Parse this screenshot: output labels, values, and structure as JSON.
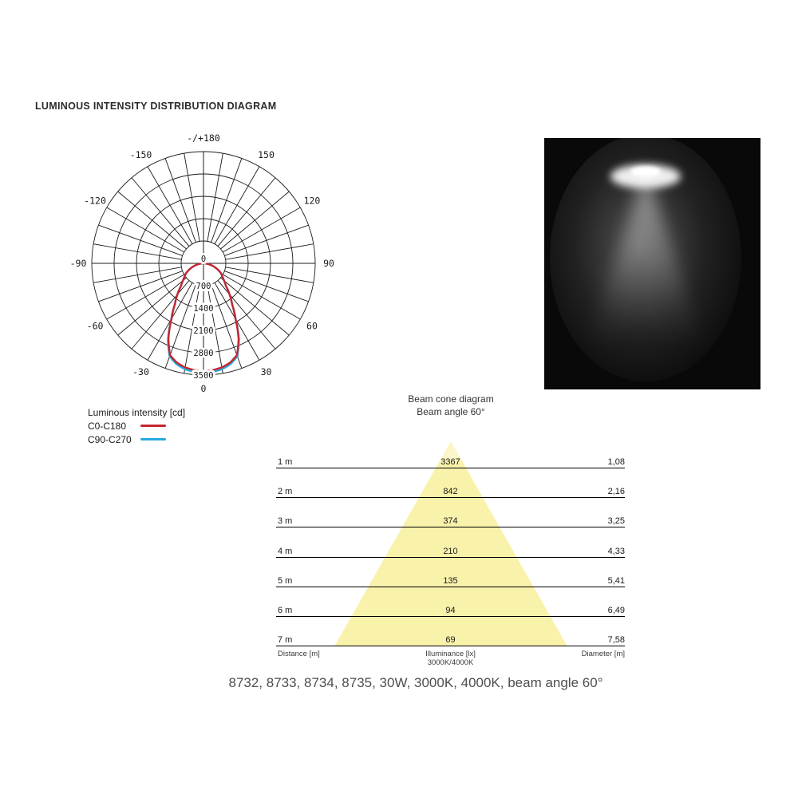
{
  "page": {
    "title": "LUMINOUS INTENSITY DISTRIBUTION DIAGRAM",
    "caption": "8732, 8733, 8734, 8735, 30W, 3000K, 4000K, beam angle 60°"
  },
  "polar": {
    "ring_max": 3500,
    "ring_labels": [
      {
        "value": 0,
        "text": "0"
      },
      {
        "value": 700,
        "text": "700"
      },
      {
        "value": 1400,
        "text": "1400"
      },
      {
        "value": 2100,
        "text": "2100"
      },
      {
        "value": 2800,
        "text": "2800"
      },
      {
        "value": 3500,
        "text": "3500"
      }
    ],
    "angle_labels": [
      {
        "deg": 0,
        "text": "0"
      },
      {
        "deg": 30,
        "text": "30"
      },
      {
        "deg": -30,
        "text": "-30"
      },
      {
        "deg": 60,
        "text": "60"
      },
      {
        "deg": -60,
        "text": "-60"
      },
      {
        "deg": 90,
        "text": "90"
      },
      {
        "deg": -90,
        "text": "-90"
      },
      {
        "deg": 120,
        "text": "120"
      },
      {
        "deg": -120,
        "text": "-120"
      },
      {
        "deg": 150,
        "text": "150"
      },
      {
        "deg": -150,
        "text": "-150"
      },
      {
        "deg": 180,
        "text": "-/+180"
      }
    ],
    "grid_color": "#1c1c1c"
  },
  "legend": {
    "title": "Luminous intensity [cd]",
    "series": [
      {
        "label": "C0-C180",
        "color": "#c6262e"
      },
      {
        "label": "C90-C270",
        "color": "#29a9e0"
      }
    ]
  },
  "photo": {
    "name": "beam-photo"
  },
  "beam_cone": {
    "title": "Beam cone diagram",
    "subtitle": "Beam angle 60°",
    "cone_color": "#f9f2ab",
    "rows": [
      {
        "distance": "1 m",
        "illuminance": "3367",
        "diameter": "1,08"
      },
      {
        "distance": "2 m",
        "illuminance": "842",
        "diameter": "2,16"
      },
      {
        "distance": "3 m",
        "illuminance": "374",
        "diameter": "3,25"
      },
      {
        "distance": "4 m",
        "illuminance": "210",
        "diameter": "4,33"
      },
      {
        "distance": "5 m",
        "illuminance": "135",
        "diameter": "5,41"
      },
      {
        "distance": "6 m",
        "illuminance": "94",
        "diameter": "6,49"
      },
      {
        "distance": "7 m",
        "illuminance": "69",
        "diameter": "7,58"
      }
    ],
    "footer": {
      "left": "Distance [m]",
      "center_line1": "Illuminance [lx]",
      "center_line2": "3000K/4000K",
      "right": "Diameter [m]"
    }
  },
  "chart_data": [
    {
      "type": "line",
      "subtype": "polar",
      "title": "Luminous intensity distribution [cd]",
      "angle_unit": "deg",
      "angle_ticks": [
        -180,
        -150,
        -120,
        -90,
        -60,
        -30,
        0,
        30,
        60,
        90,
        120,
        150,
        180
      ],
      "radial_ticks": [
        0,
        700,
        1400,
        2100,
        2800,
        3500
      ],
      "radial_max": 3500,
      "grid": true,
      "legend_position": "bottom-left",
      "series": [
        {
          "name": "C0-C180",
          "color": "#c6262e",
          "angles": [
            0,
            5,
            10,
            15,
            20,
            25,
            30,
            35,
            40,
            45,
            50,
            55,
            60,
            65,
            70,
            75,
            80,
            85,
            90
          ],
          "values": [
            3367,
            3355,
            3310,
            3220,
            3060,
            2600,
            2000,
            1560,
            1270,
            990,
            840,
            720,
            640,
            520,
            400,
            290,
            180,
            80,
            0
          ]
        },
        {
          "name": "C90-C270",
          "color": "#29a9e0",
          "angles": [
            0,
            5,
            10,
            15,
            20,
            25,
            30,
            35,
            40,
            45,
            50,
            55,
            60,
            65,
            70,
            75,
            80,
            85,
            90
          ],
          "values": [
            3430,
            3415,
            3365,
            3270,
            3100,
            2630,
            2020,
            1570,
            1275,
            992,
            842,
            720,
            638,
            518,
            398,
            288,
            178,
            78,
            0
          ]
        }
      ]
    },
    {
      "type": "table",
      "title": "Beam cone diagram",
      "subtitle": "Beam angle 60°",
      "columns": [
        "Distance [m]",
        "Illuminance [lx] 3000K/4000K",
        "Diameter [m]"
      ],
      "rows": [
        [
          "1 m",
          "3367",
          "1,08"
        ],
        [
          "2 m",
          "842",
          "2,16"
        ],
        [
          "3 m",
          "374",
          "3,25"
        ],
        [
          "4 m",
          "210",
          "4,33"
        ],
        [
          "5 m",
          "135",
          "5,41"
        ],
        [
          "6 m",
          "94",
          "6,49"
        ],
        [
          "7 m",
          "69",
          "7,58"
        ]
      ]
    }
  ]
}
